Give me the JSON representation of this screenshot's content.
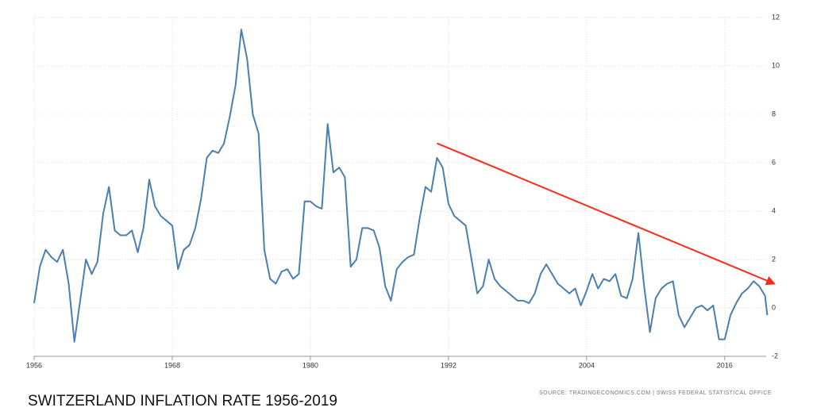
{
  "chart_data": {
    "type": "line",
    "title": "SWITZERLAND INFLATION RATE 1956-2019",
    "source": "SOURCE: TRADINGECONOMICS.COM | SWISS FEDERAL STATISTICAL OFFICE",
    "x": [
      1956.0,
      1956.5,
      1957.0,
      1957.5,
      1958.0,
      1958.5,
      1959.0,
      1959.5,
      1960.0,
      1960.5,
      1961.0,
      1961.5,
      1962.0,
      1962.5,
      1963.0,
      1963.5,
      1964.0,
      1964.5,
      1965.0,
      1965.5,
      1966.0,
      1966.5,
      1967.0,
      1967.5,
      1968.0,
      1968.5,
      1969.0,
      1969.5,
      1970.0,
      1970.5,
      1971.0,
      1971.5,
      1972.0,
      1972.5,
      1973.0,
      1973.5,
      1974.0,
      1974.5,
      1975.0,
      1975.5,
      1976.0,
      1976.5,
      1977.0,
      1977.5,
      1978.0,
      1978.5,
      1979.0,
      1979.5,
      1980.0,
      1980.5,
      1981.0,
      1981.5,
      1982.0,
      1982.5,
      1983.0,
      1983.5,
      1984.0,
      1984.5,
      1985.0,
      1985.5,
      1986.0,
      1986.5,
      1987.0,
      1987.5,
      1988.0,
      1988.5,
      1989.0,
      1989.5,
      1990.0,
      1990.5,
      1991.0,
      1991.5,
      1992.0,
      1992.5,
      1993.0,
      1993.5,
      1994.0,
      1994.5,
      1995.0,
      1995.5,
      1996.0,
      1996.5,
      1997.0,
      1997.5,
      1998.0,
      1998.5,
      1999.0,
      1999.5,
      2000.0,
      2000.5,
      2001.0,
      2001.5,
      2002.0,
      2002.5,
      2003.0,
      2003.5,
      2004.0,
      2004.5,
      2005.0,
      2005.5,
      2006.0,
      2006.5,
      2007.0,
      2007.5,
      2008.0,
      2008.5,
      2009.0,
      2009.5,
      2010.0,
      2010.5,
      2011.0,
      2011.5,
      2012.0,
      2012.5,
      2013.0,
      2013.5,
      2014.0,
      2014.5,
      2015.0,
      2015.5,
      2016.0,
      2016.5,
      2017.0,
      2017.5,
      2018.0,
      2018.5,
      2019.0,
      2019.5,
      2019.7
    ],
    "series": [
      {
        "color": "#4a7fb0",
        "values": [
          0.2,
          1.7,
          2.4,
          2.1,
          1.9,
          2.4,
          1.0,
          -1.4,
          0.3,
          2.0,
          1.4,
          1.9,
          3.9,
          5.0,
          3.2,
          3.0,
          3.0,
          3.2,
          2.3,
          3.3,
          5.3,
          4.2,
          3.8,
          3.6,
          3.4,
          1.6,
          2.4,
          2.6,
          3.3,
          4.5,
          6.2,
          6.5,
          6.4,
          6.8,
          7.9,
          9.2,
          11.5,
          10.3,
          8.0,
          7.2,
          2.4,
          1.2,
          1.0,
          1.5,
          1.6,
          1.2,
          1.4,
          4.4,
          4.4,
          4.2,
          4.1,
          7.6,
          5.6,
          5.8,
          5.4,
          1.7,
          2.0,
          3.3,
          3.3,
          3.2,
          2.5,
          0.9,
          0.3,
          1.6,
          1.9,
          2.1,
          2.2,
          3.7,
          5.0,
          4.8,
          6.2,
          5.8,
          4.3,
          3.8,
          3.6,
          3.4,
          2.0,
          0.6,
          0.9,
          2.0,
          1.2,
          0.9,
          0.7,
          0.5,
          0.3,
          0.3,
          0.2,
          0.6,
          1.4,
          1.8,
          1.4,
          1.0,
          0.8,
          0.6,
          0.8,
          0.1,
          0.7,
          1.4,
          0.8,
          1.2,
          1.1,
          1.4,
          0.5,
          0.4,
          1.2,
          3.1,
          0.9,
          -1.0,
          0.4,
          0.8,
          1.0,
          1.1,
          -0.3,
          -0.8,
          -0.4,
          0.0,
          0.1,
          -0.1,
          0.1,
          -1.3,
          -1.3,
          -0.3,
          0.2,
          0.6,
          0.8,
          1.1,
          0.9,
          0.5,
          -0.3
        ]
      }
    ],
    "trend_line": {
      "x": [
        1991.0,
        2020.3
      ],
      "values": [
        6.8,
        1.0
      ],
      "color": "#ff2a1a"
    },
    "xlim": [
      1956,
      2019.6
    ],
    "xticks": [
      1956,
      1968,
      1980,
      1992,
      2004,
      2016
    ],
    "ylim": [
      -2,
      12
    ],
    "yticks": [
      -2,
      0,
      2,
      4,
      6,
      8,
      10,
      12
    ],
    "grid": true
  }
}
